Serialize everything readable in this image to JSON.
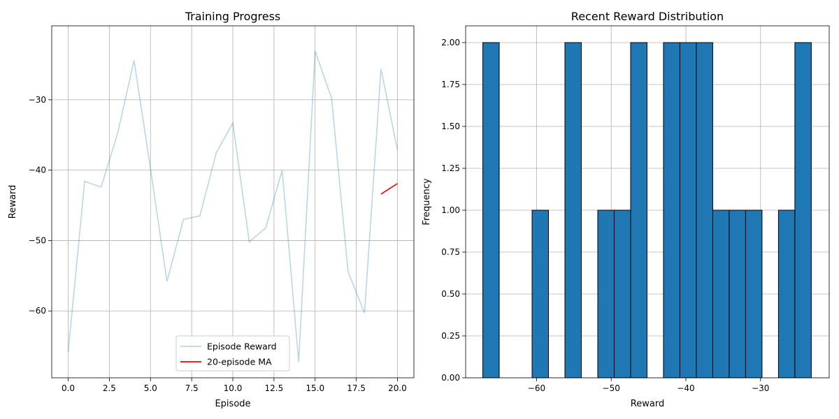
{
  "chart_data": [
    {
      "type": "line",
      "title": "Training Progress",
      "xlabel": "Episode",
      "ylabel": "Reward",
      "xlim": [
        -1,
        21
      ],
      "ylim": [
        -69.5,
        -19.5
      ],
      "x_ticks": [
        0,
        2.5,
        5,
        7.5,
        10,
        12.5,
        15,
        17.5,
        20
      ],
      "x_tick_labels": [
        "0.0",
        "2.5",
        "5.0",
        "7.5",
        "10.0",
        "12.5",
        "15.0",
        "17.5",
        "20.0"
      ],
      "y_ticks": [
        -60,
        -50,
        -40,
        -30
      ],
      "y_tick_labels": [
        "−60",
        "−50",
        "−40",
        "−30"
      ],
      "grid": true,
      "legend_position": "lower-center",
      "series": [
        {
          "name": "Episode Reward",
          "color": "#1f77b4",
          "alpha": 0.3,
          "x": [
            0,
            1,
            2,
            3,
            4,
            5,
            6,
            7,
            8,
            9,
            10,
            11,
            12,
            13,
            14,
            15,
            16,
            17,
            18,
            19,
            20
          ],
          "values": [
            -65.8,
            -41.6,
            -42.4,
            -34.8,
            -24.4,
            -39.8,
            -55.8,
            -47.0,
            -46.5,
            -37.5,
            -33.3,
            -50.2,
            -48.2,
            -40.0,
            -67.2,
            -23.1,
            -29.8,
            -54.4,
            -60.3,
            -25.6,
            -37.1
          ]
        },
        {
          "name": "20-episode MA",
          "color": "#ff0000",
          "alpha": 1,
          "x": [
            19,
            20
          ],
          "values": [
            -43.4,
            -41.9
          ]
        }
      ]
    },
    {
      "type": "bar",
      "title": "Recent Reward Distribution",
      "xlabel": "Reward",
      "ylabel": "Frequency",
      "xlim": [
        -69.5,
        -20.8
      ],
      "ylim": [
        0,
        2.1
      ],
      "x_ticks": [
        -60,
        -50,
        -40,
        -30
      ],
      "x_tick_labels": [
        "−60",
        "−50",
        "−40",
        "−30"
      ],
      "y_ticks": [
        0,
        0.25,
        0.5,
        0.75,
        1,
        1.25,
        1.5,
        1.75,
        2
      ],
      "y_tick_labels": [
        "0.00",
        "0.25",
        "0.50",
        "0.75",
        "1.00",
        "1.25",
        "1.50",
        "1.75",
        "2.00"
      ],
      "grid": true,
      "bar_color": "#1f77b4",
      "bins": {
        "start": -67.2,
        "width": 2.2,
        "counts": [
          2,
          0,
          0,
          1,
          0,
          2,
          0,
          1,
          1,
          2,
          0,
          2,
          2,
          2,
          1,
          1,
          1,
          0,
          1,
          2
        ]
      }
    }
  ]
}
